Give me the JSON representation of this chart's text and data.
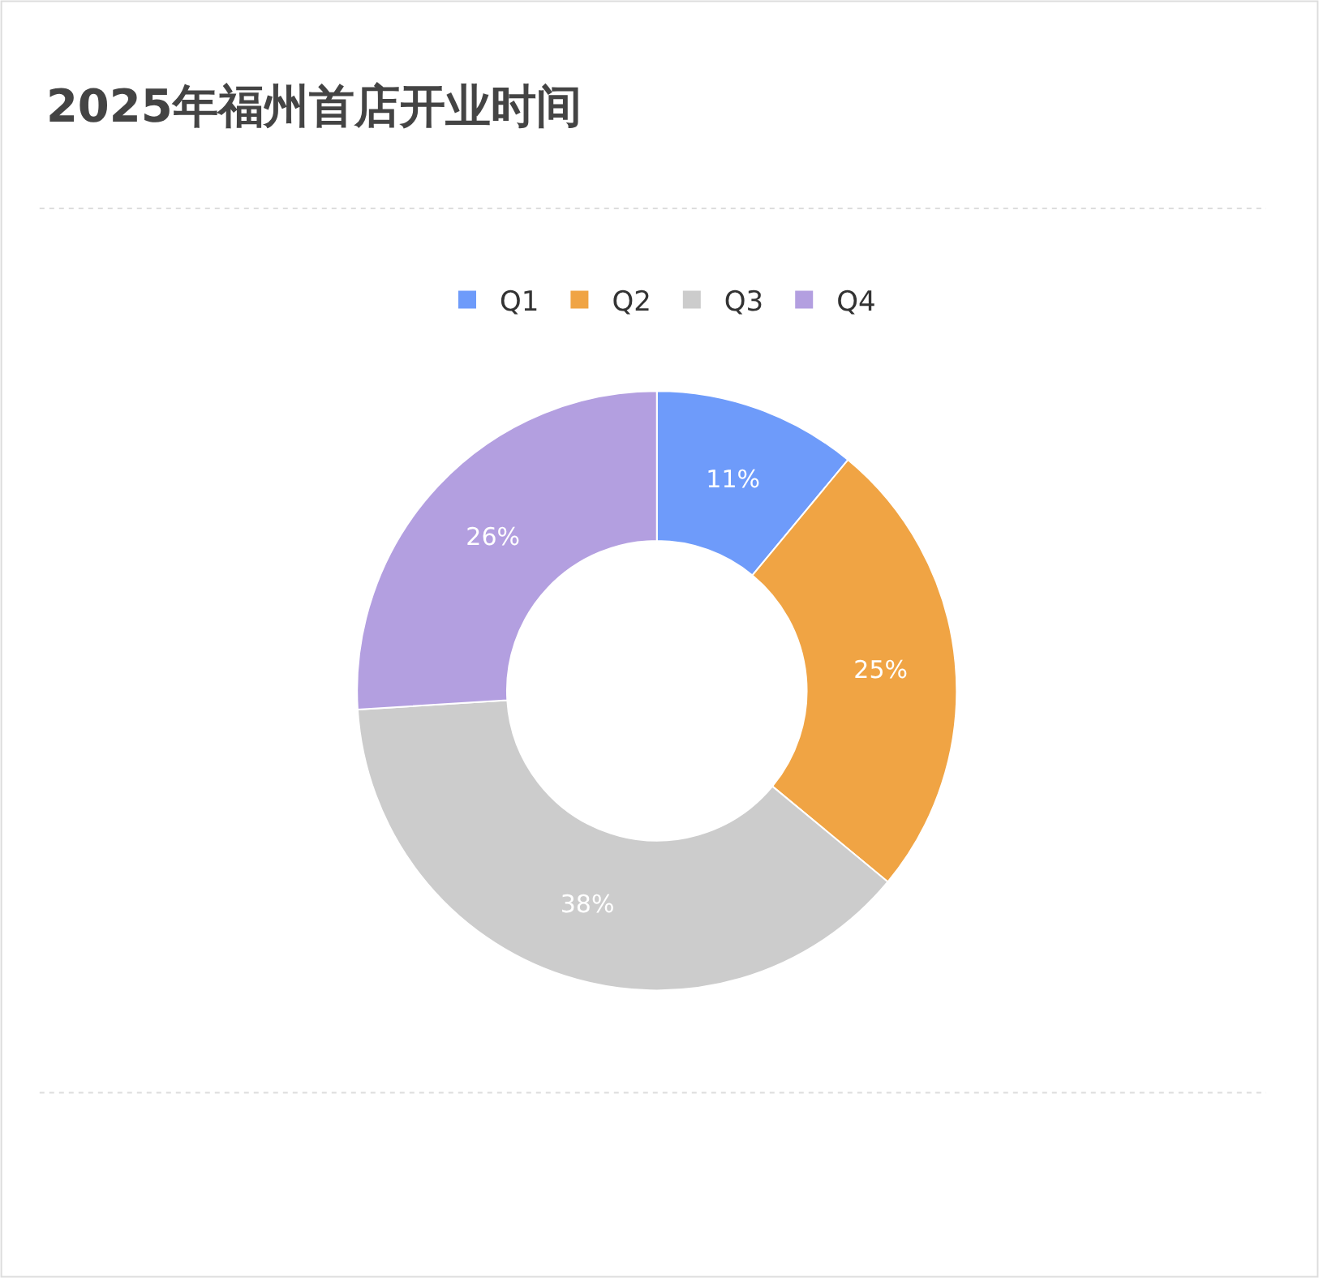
{
  "chart_data": {
    "type": "donut",
    "title": "2025年福州首店开业时间",
    "categories": [
      "Q1",
      "Q2",
      "Q3",
      "Q4"
    ],
    "values": [
      11,
      25,
      38,
      26
    ],
    "colors": [
      "#6e9bfa",
      "#f0a444",
      "#cccccc",
      "#b39fe0"
    ],
    "value_labels": [
      "11%",
      "25%",
      "38%",
      "26%"
    ],
    "legend": "top"
  }
}
